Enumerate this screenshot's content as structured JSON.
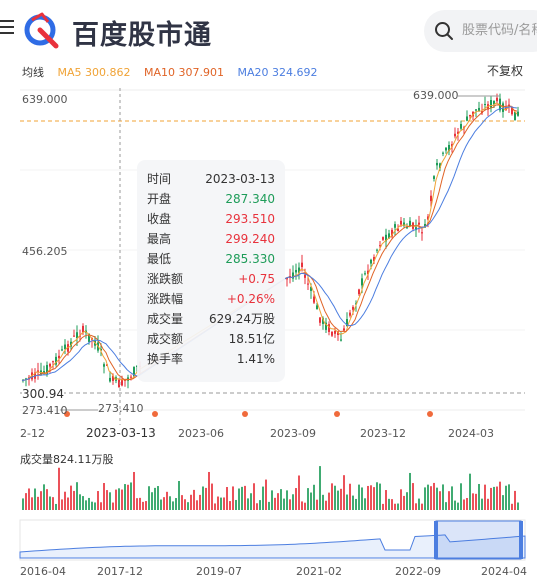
{
  "header": {
    "brand": "百度股市通",
    "search_placeholder": "股票代码/名称"
  },
  "ma": {
    "label": "均线",
    "ma5": "MA5 300.862",
    "ma10": "MA10 307.901",
    "ma20": "MA20 324.692",
    "adjust": "不复权"
  },
  "price_axis": {
    "top": "639.000",
    "mid": "456.205",
    "bottom": "300.94",
    "low_marker": "273.410",
    "high_marker": "639.000",
    "low_marker2": "273.410"
  },
  "tooltip": {
    "rows": [
      {
        "label": "时间",
        "value": "2023-03-13"
      },
      {
        "label": "开盘",
        "value": "287.340"
      },
      {
        "label": "收盘",
        "value": "293.510"
      },
      {
        "label": "最高",
        "value": "299.240"
      },
      {
        "label": "最低",
        "value": "285.330"
      },
      {
        "label": "涨跌额",
        "value": "+0.75"
      },
      {
        "label": "涨跌幅",
        "value": "+0.26%"
      },
      {
        "label": "成交量",
        "value": "629.24万股"
      },
      {
        "label": "成交额",
        "value": "18.51亿"
      },
      {
        "label": "换手率",
        "value": "1.41%"
      }
    ]
  },
  "x_axis": {
    "labels": [
      "2-12",
      "2023-06",
      "2023-09",
      "2023-12",
      "2024-03"
    ],
    "crosshair_date": "2023-03-13"
  },
  "volume": {
    "label": "成交量824.11万股"
  },
  "navigator": {
    "labels": [
      "2016-04",
      "2017-12",
      "2019-07",
      "2021-02",
      "2022-09",
      "2024-04"
    ]
  },
  "colors": {
    "up": "#e8323c",
    "down": "#1e9c59",
    "ma5": "#f0a336",
    "ma10": "#e06427",
    "ma20": "#4c7ee0",
    "accent": "#4c7ee0"
  }
}
